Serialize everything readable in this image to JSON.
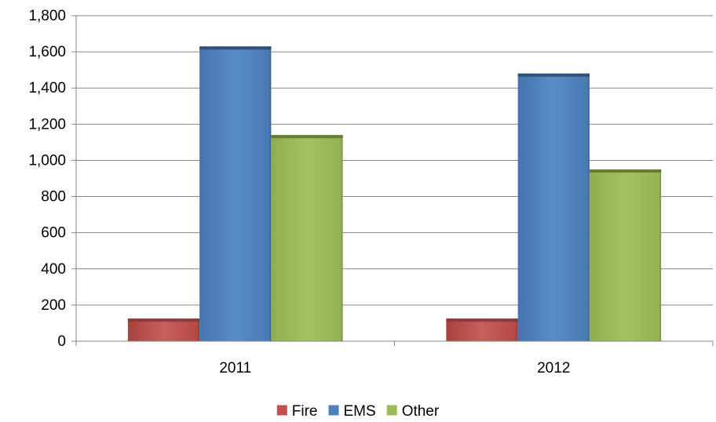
{
  "chart_data": {
    "type": "bar",
    "categories": [
      "2011",
      "2012"
    ],
    "series": [
      {
        "name": "Fire",
        "values": [
          125,
          125
        ],
        "color": "#c0504d",
        "top_color": "#8c3836"
      },
      {
        "name": "EMS",
        "values": [
          1630,
          1480
        ],
        "color": "#4f81bd",
        "top_color": "#2c4d75"
      },
      {
        "name": "Other",
        "values": [
          1140,
          950
        ],
        "color": "#9bbb59",
        "top_color": "#5f7530"
      }
    ],
    "ylim": [
      0,
      1800
    ],
    "yticks": [
      0,
      200,
      400,
      600,
      800,
      1000,
      1200,
      1400,
      1600,
      1800
    ],
    "ytick_labels": [
      "0",
      "200",
      "400",
      "600",
      "800",
      "1,000",
      "1,200",
      "1,400",
      "1,600",
      "1,800"
    ],
    "grid": true,
    "legend_position": "bottom",
    "title": "",
    "xlabel": "",
    "ylabel": ""
  }
}
